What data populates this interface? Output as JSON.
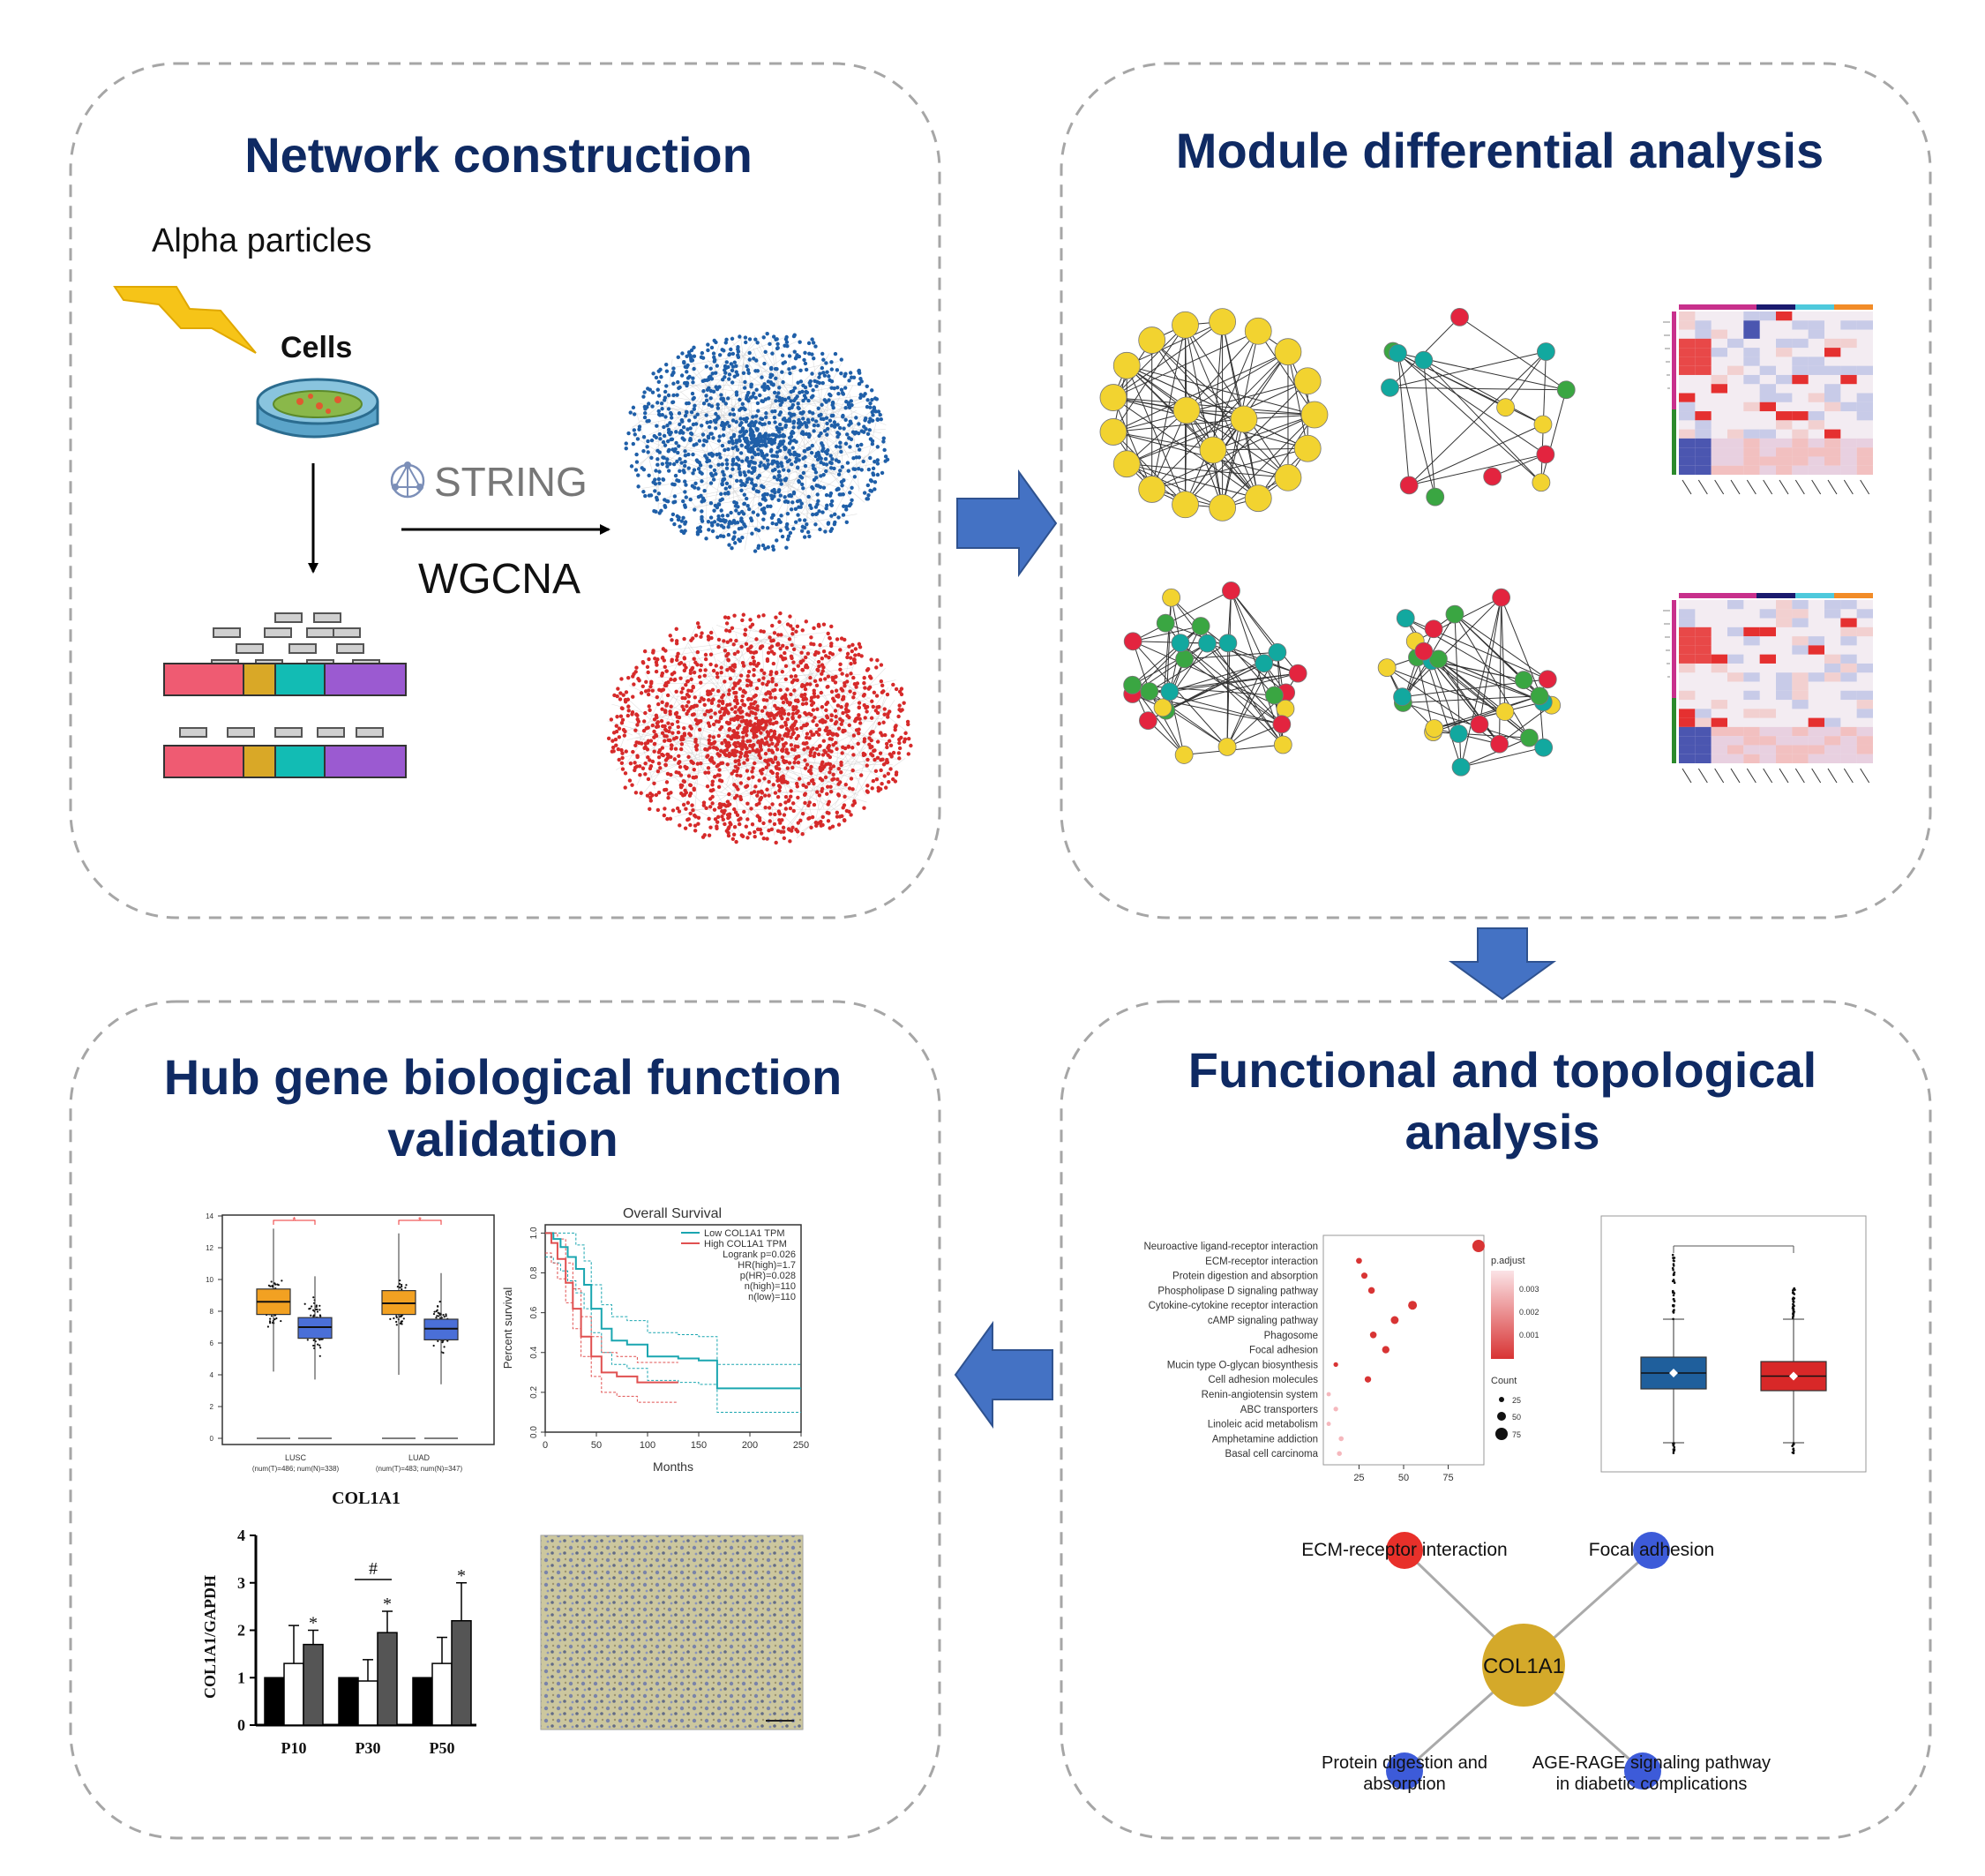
{
  "panels": {
    "network": {
      "title": "Network construction",
      "stimulus": "Alpha particles",
      "cells_label": "Cells",
      "string_label": "STRING",
      "wgcna_label": "WGCNA"
    },
    "module": {
      "title": "Module differential analysis"
    },
    "hub": {
      "title_line1": "Hub gene biological function",
      "title_line2": "validation"
    },
    "functional": {
      "title_line1": "Functional and topological",
      "title_line2": "analysis"
    }
  },
  "boxplot": {
    "gene": "COL1A1",
    "groups": [
      {
        "name": "LUSC",
        "n": "(num(T)=486; num(N)=338)"
      },
      {
        "name": "LUAD",
        "n": "(num(T)=483; num(N)=347)"
      }
    ],
    "yticks": [
      "0",
      "2",
      "4",
      "6",
      "8",
      "10",
      "12",
      "14"
    ],
    "star": "*"
  },
  "survival": {
    "title": "Overall Survival",
    "legend_low": "Low COL1A1 TPM",
    "legend_high": "High COL1A1 TPM",
    "stats": [
      "Logrank p=0.026",
      "HR(high)=1.7",
      "p(HR)=0.028",
      "n(high)=110",
      "n(low)=110"
    ],
    "xlabel": "Months",
    "ylabel": "Percent survival",
    "xticks": [
      "0",
      "50",
      "100",
      "150",
      "200",
      "250"
    ],
    "yticks": [
      "0.0",
      "0.2",
      "0.4",
      "0.6",
      "0.8",
      "1.0"
    ],
    "colors": {
      "low": "#1aa6b0",
      "high": "#e05050"
    }
  },
  "barchart": {
    "ylabel": "COL1A1/GAPDH",
    "categories": [
      "P10",
      "P30",
      "P50"
    ],
    "yticks": [
      "0",
      "1",
      "2",
      "3",
      "4"
    ],
    "ylim": [
      0,
      4
    ],
    "series": [
      {
        "values": [
          1.0,
          1.0,
          1.0
        ],
        "color": "#000000"
      },
      {
        "values": [
          1.3,
          0.93,
          1.3
        ],
        "color": "#ffffff"
      },
      {
        "values": [
          1.7,
          1.95,
          2.2
        ],
        "color": "#555555"
      }
    ],
    "errors": [
      [
        0,
        0,
        0
      ],
      [
        0.8,
        0.45,
        0.55
      ],
      [
        0.3,
        0.45,
        0.8
      ]
    ],
    "marks": {
      "star": "*",
      "hash": "#"
    }
  },
  "dotplot": {
    "terms": [
      "Neuroactive ligand-receptor interaction",
      "ECM-receptor interaction",
      "Protein digestion and absorption",
      "Phospholipase D signaling pathway",
      "Cytokine-cytokine receptor interaction",
      "cAMP signaling pathway",
      "Phagosome",
      "Focal adhesion",
      "Mucin type O-glycan biosynthesis",
      "Cell adhesion molecules",
      "Renin-angiotensin system",
      "ABC transporters",
      "Linoleic acid metabolism",
      "Amphetamine addiction",
      "Basal cell carcinoma"
    ],
    "counts": [
      92,
      25,
      28,
      32,
      55,
      45,
      33,
      40,
      12,
      30,
      8,
      12,
      8,
      15,
      14
    ],
    "xticks": [
      "25",
      "50",
      "75"
    ],
    "legend_padj": "p.adjust",
    "padj_ticks": [
      "0.003",
      "0.002",
      "0.001"
    ],
    "legend_count": "Count",
    "count_ticks": [
      "25",
      "50",
      "75"
    ]
  },
  "hub_network": {
    "center": "COL1A1",
    "nodes": [
      {
        "label": "ECM-receptor interaction",
        "color": "#e8302a"
      },
      {
        "label": "Focal adhesion",
        "color": "#3d5bd9"
      },
      {
        "label_line1": "Protein digestion and",
        "label_line2": "absorption",
        "color": "#3d5bd9"
      },
      {
        "label_line1": "AGE-RAGE signaling  pathway",
        "label_line2": "in diabetic complications",
        "color": "#3d5bd9"
      }
    ],
    "center_color": "#d4a92a"
  },
  "colors": {
    "title": "#0f2a63",
    "arrow": "#4472c4",
    "border": "#a6a6a6"
  }
}
